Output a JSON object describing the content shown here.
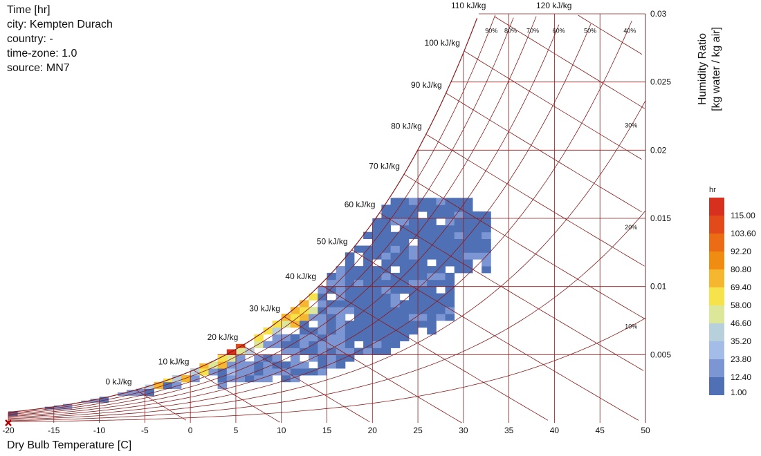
{
  "info": {
    "title": "Time [hr]",
    "city": "city: Kempten Durach",
    "country": "country: -",
    "timezone": "time-zone: 1.0",
    "source": "source: MN7"
  },
  "chart_data": {
    "type": "heatmap",
    "title": "Time [hr]",
    "xlabel": "Dry Bulb Temperature [C]",
    "ylabel_line1": "Humidity Ratio",
    "ylabel_line2": "[kg water / kg air]",
    "xlim": [
      -20,
      50
    ],
    "ylim": [
      0,
      0.03
    ],
    "x_ticks": [
      -20,
      -15,
      -10,
      -5,
      0,
      5,
      10,
      15,
      20,
      25,
      30,
      35,
      40,
      45,
      50
    ],
    "y_ticks": [
      0.005,
      0.01,
      0.015,
      0.02,
      0.025,
      0.03
    ],
    "y_tick_labels": [
      "0.005",
      "0.01",
      "0.015",
      "0.02",
      "0.025",
      "0.03"
    ],
    "enthalpy_lines_kJkg": [
      0,
      10,
      20,
      30,
      40,
      50,
      60,
      70,
      80,
      90,
      100,
      110,
      120
    ],
    "enthalpy_labels": [
      "0 kJ/kg",
      "10 kJ/kg",
      "20 kJ/kg",
      "30 kJ/kg",
      "40 kJ/kg",
      "50 kJ/kg",
      "60 kJ/kg",
      "70 kJ/kg",
      "80 kJ/kg",
      "90 kJ/kg",
      "100 kJ/kg",
      "110 kJ/kg",
      "120 kJ/kg"
    ],
    "rh_lines_percent": [
      10,
      20,
      30,
      40,
      50,
      60,
      70,
      80,
      90
    ],
    "rh_labels": [
      "10%",
      "20%",
      "30%",
      "40%",
      "50%",
      "60%",
      "70%",
      "80%",
      "90%"
    ],
    "legend": {
      "title": "hr",
      "placement": "right",
      "values": [
        "115.00",
        "103.60",
        "92.20",
        "80.80",
        "69.40",
        "58.00",
        "46.60",
        "35.20",
        "23.80",
        "12.40",
        "1.00"
      ],
      "colors": [
        "#d7301f",
        "#e34a1b",
        "#ec6b15",
        "#f08c12",
        "#f6b730",
        "#f6e24a",
        "#dde79a",
        "#b8d0dc",
        "#a3bde8",
        "#7b96d2",
        "#5070b6"
      ]
    },
    "bin_size": {
      "t": 1,
      "w": 0.0005
    },
    "cells": [
      [
        -20,
        0.0005,
        5
      ],
      [
        3,
        0.005,
        115
      ],
      [
        4,
        0.005,
        110
      ],
      [
        5,
        0.0055,
        100
      ]
    ]
  },
  "colors": {
    "grid_line": "#8b1a1a",
    "axis_text": "#111111",
    "marker": "#b00000"
  }
}
